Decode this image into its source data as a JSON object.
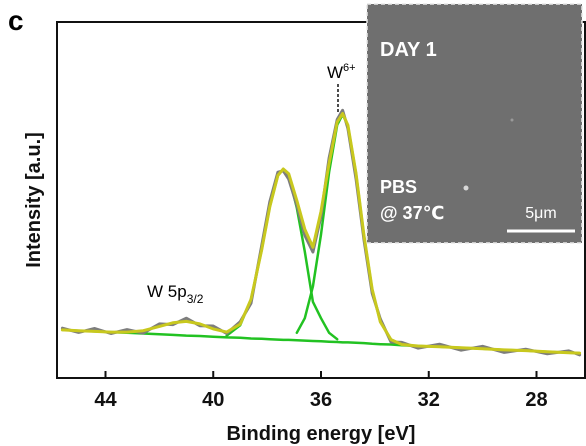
{
  "chart_data": {
    "type": "line",
    "panel_label": "c",
    "x_label": "Binding energy [eV]",
    "y_label": "Intensity [a.u.]",
    "xlim": [
      45.8,
      26.2
    ],
    "ylim": [
      0,
      100
    ],
    "xticks": [
      44,
      40,
      36,
      32,
      28
    ],
    "grid": false,
    "x": [
      45.6,
      45.0,
      44.4,
      43.8,
      43.2,
      42.6,
      42.0,
      41.5,
      41.0,
      40.5,
      40.0,
      39.5,
      39.0,
      38.6,
      38.2,
      37.9,
      37.6,
      37.4,
      37.2,
      36.9,
      36.6,
      36.3,
      36.0,
      35.7,
      35.4,
      35.2,
      35.0,
      34.7,
      34.4,
      34.1,
      33.8,
      33.4,
      33.0,
      32.4,
      31.6,
      30.8,
      30.0,
      29.2,
      28.4,
      27.6,
      26.8,
      26.4
    ],
    "series": [
      {
        "color": "#22c222",
        "width": 2.5,
        "values": [
          13.5,
          13.3,
          13.1,
          12.9,
          12.7,
          12.5,
          12.3,
          12.1,
          11.9,
          11.8,
          11.6,
          11.4,
          11.3,
          11.1,
          11.0,
          10.9,
          10.8,
          10.7,
          10.7,
          10.6,
          10.5,
          10.4,
          10.3,
          10.2,
          10.1,
          10.0,
          10.0,
          9.9,
          9.8,
          9.6,
          9.5,
          9.4,
          9.2,
          9.0,
          8.8,
          8.5,
          8.2,
          7.9,
          7.7,
          7.4,
          7.1,
          7.0
        ]
      },
      {
        "color": "#22c222",
        "width": 2.5,
        "values": [
          null,
          null,
          null,
          null,
          null,
          null,
          null,
          null,
          null,
          null,
          null,
          11.9,
          14.8,
          22.1,
          36.0,
          48.1,
          56.9,
          58.7,
          56.8,
          47.8,
          35.5,
          21.4,
          16.8,
          12.7,
          10.9,
          null,
          null,
          null,
          null,
          null,
          null,
          null,
          null,
          null,
          null,
          null,
          null,
          null,
          null,
          null,
          null,
          null
        ]
      },
      {
        "color": "#22c222",
        "width": 2.5,
        "values": [
          null,
          null,
          null,
          null,
          null,
          null,
          null,
          null,
          null,
          null,
          null,
          null,
          null,
          null,
          null,
          null,
          null,
          null,
          null,
          12.7,
          16.8,
          25.7,
          40.3,
          57.8,
          71.1,
          74.0,
          71.0,
          57.5,
          39.8,
          24.9,
          15.8,
          10.8,
          9.4,
          null,
          null,
          null,
          null,
          null,
          null,
          null,
          null,
          null
        ]
      },
      {
        "color": "#7d7d7d",
        "width": 3,
        "values": [
          14.0,
          12.8,
          13.9,
          12.5,
          13.6,
          12.6,
          15.2,
          15.0,
          16.8,
          14.7,
          14.6,
          12.5,
          15.8,
          21.0,
          37.2,
          49.5,
          57.8,
          58.2,
          55.9,
          48.6,
          40.1,
          35.4,
          45.5,
          61.8,
          72.6,
          75.2,
          70.1,
          56.0,
          38.6,
          23.8,
          16.6,
          10.1,
          10.0,
          8.4,
          9.5,
          7.8,
          8.9,
          7.2,
          8.1,
          6.8,
          7.6,
          6.5
        ]
      },
      {
        "color": "#c8c81e",
        "width": 3,
        "values": [
          13.5,
          13.3,
          13.1,
          12.9,
          12.9,
          13.3,
          14.5,
          15.5,
          15.9,
          15.2,
          13.8,
          12.9,
          15.1,
          22.1,
          36.0,
          48.1,
          56.9,
          58.7,
          57.4,
          49.9,
          41.8,
          36.7,
          46.8,
          60.3,
          71.9,
          74.3,
          71.0,
          57.5,
          39.8,
          24.9,
          15.8,
          10.8,
          9.4,
          9.0,
          8.8,
          8.5,
          8.2,
          7.9,
          7.7,
          7.4,
          7.1,
          7.0
        ]
      }
    ],
    "annotations": [
      {
        "text": "W 5p",
        "sub": "3/2"
      },
      {
        "text": "W",
        "sup": "6+"
      }
    ],
    "inset": {
      "labels": [
        "DAY 1",
        "PBS",
        "@ 37℃"
      ],
      "scale_bar": "5μm"
    }
  }
}
